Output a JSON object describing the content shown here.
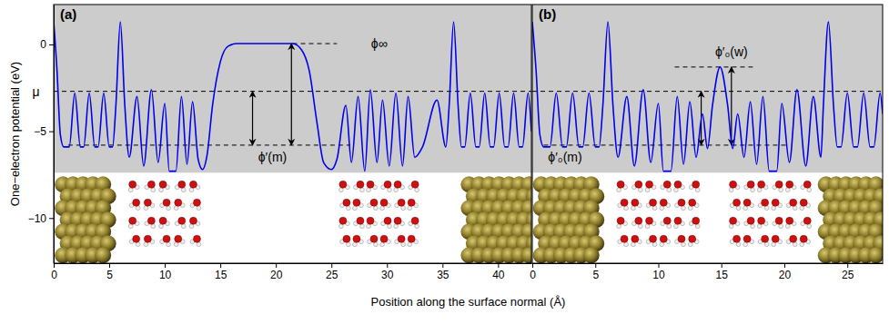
{
  "chart_data": [
    {
      "type": "line",
      "title": "(a)",
      "xlabel": "Position along the surface normal (Å)",
      "ylabel": "One−electron potential (eV)",
      "color": "#0000ee",
      "x": [
        0,
        0.3,
        0.6,
        0.9,
        1.4,
        1.9,
        2.4,
        2.7,
        3.2,
        3.7,
        4.0,
        4.5,
        5.0,
        5.3,
        5.6,
        6.0,
        6.4,
        6.8,
        7.5,
        8.1,
        8.8,
        9.4,
        10.0,
        10.4,
        11.0,
        11.5,
        12.0,
        12.5,
        13.0,
        13.4,
        13.8,
        14.3,
        15.0,
        15.7,
        16.5,
        21.5,
        22.3,
        23.0,
        23.7,
        24.3,
        25.0,
        25.5,
        26.3,
        26.8,
        27.4,
        28.0,
        28.5,
        29.1,
        29.6,
        30.2,
        30.8,
        31.4,
        31.9,
        32.5,
        33.2,
        34.5,
        35.3,
        35.6,
        36.0,
        36.4,
        36.7,
        37.0,
        37.5,
        38.0,
        38.3,
        38.8,
        39.3,
        39.6,
        40.1,
        40.6,
        40.9,
        41.4,
        41.9,
        42.2,
        42.7,
        43.0
      ],
      "values": [
        1.3,
        -1.5,
        -5.2,
        -5.9,
        -5.9,
        -2.8,
        -5.9,
        -5.9,
        -2.8,
        -5.9,
        -5.9,
        -2.8,
        -5.9,
        -5.9,
        -3.5,
        1.3,
        -3.5,
        -6.5,
        -3.0,
        -7.0,
        -2.6,
        -6.8,
        -3.4,
        -7.3,
        -7.3,
        -3.0,
        -6.9,
        -3.3,
        -6.6,
        -7.2,
        -6.4,
        -3.5,
        -1.0,
        -0.1,
        0.05,
        0.05,
        -0.3,
        -1.5,
        -4.5,
        -6.8,
        -7.2,
        -6.6,
        -3.5,
        -6.8,
        -3.0,
        -7.3,
        -2.6,
        -6.8,
        -3.2,
        -7.0,
        -2.8,
        -7.0,
        -3.0,
        -6.5,
        -5.9,
        -3.2,
        -5.9,
        -3.5,
        1.3,
        -3.5,
        -5.9,
        -5.9,
        -2.8,
        -5.9,
        -5.9,
        -2.8,
        -5.9,
        -5.9,
        -2.8,
        -5.9,
        -5.9,
        -2.8,
        -5.9,
        -5.9,
        -2.8,
        -5.0
      ],
      "xlim": [
        0,
        43
      ],
      "xticks": [
        0,
        5,
        10,
        15,
        20,
        25,
        30,
        35,
        40
      ],
      "ylim": [
        -12.6,
        2.3
      ],
      "yticks": [
        {
          "value": -10,
          "label": "−10"
        },
        {
          "value": -5,
          "label": "−5"
        },
        0
      ],
      "levels": [
        {
          "label": "μ",
          "value": -2.7,
          "text_x": -1.6,
          "text_y": -2.7
        },
        {
          "label": "ϕ∞",
          "value": 0.05,
          "x_range": [
            21.5,
            25.5
          ],
          "text_x": 29.3,
          "text_y": 0.05
        },
        {
          "label": "ϕ′(m)",
          "value": -5.8,
          "x_range": [
            1.3,
            26.7
          ],
          "text_x": 19.7,
          "text_y": -6.5
        }
      ],
      "arrows": [
        {
          "x": 17.9,
          "from": -5.8,
          "to": -2.7
        },
        {
          "x": 21.4,
          "from": -5.8,
          "to": 0.05
        }
      ]
    },
    {
      "type": "line",
      "title": "(b)",
      "color": "#0000ee",
      "x": [
        0,
        0.3,
        0.6,
        0.9,
        1.4,
        1.9,
        2.4,
        2.7,
        3.2,
        3.7,
        4.0,
        4.5,
        5.0,
        5.3,
        5.6,
        6.0,
        6.4,
        6.8,
        7.5,
        8.1,
        8.8,
        9.4,
        10.0,
        10.4,
        11.0,
        11.5,
        12.0,
        12.5,
        13.0,
        13.5,
        13.9,
        14.3,
        14.9,
        15.5,
        15.9,
        16.3,
        16.8,
        17.3,
        17.8,
        18.3,
        18.8,
        19.4,
        19.8,
        20.4,
        21.0,
        21.7,
        22.3,
        22.9,
        23.1,
        23.5,
        23.9,
        24.2,
        24.5,
        25.0,
        25.5,
        25.8,
        26.3,
        26.8,
        27.1,
        27.6,
        27.8
      ],
      "values": [
        1.3,
        -1.5,
        -5.2,
        -5.9,
        -5.9,
        -2.8,
        -5.9,
        -5.9,
        -2.8,
        -5.9,
        -5.9,
        -2.8,
        -5.9,
        -5.9,
        -3.5,
        1.3,
        -3.5,
        -6.5,
        -3.0,
        -7.0,
        -2.6,
        -6.8,
        -3.4,
        -7.3,
        -7.3,
        -3.0,
        -6.9,
        -3.3,
        -6.5,
        -4.0,
        -6.0,
        -3.5,
        -1.3,
        -3.5,
        -6.0,
        -4.0,
        -6.5,
        -3.3,
        -6.9,
        -3.0,
        -7.3,
        -7.3,
        -3.4,
        -6.8,
        -2.6,
        -7.0,
        -3.0,
        -6.5,
        -3.5,
        1.3,
        -3.5,
        -5.9,
        -5.9,
        -2.8,
        -5.9,
        -5.9,
        -2.8,
        -5.9,
        -5.9,
        -2.8,
        -4.0
      ],
      "xlim": [
        0,
        27.8
      ],
      "xticks": [
        0,
        5,
        10,
        15,
        20,
        25
      ],
      "ylim": [
        -12.6,
        2.3
      ],
      "tick_labels": "x",
      "levels": [
        {
          "value": -2.7
        },
        {
          "label": "ϕ′₀(w)",
          "value": -1.3,
          "x_range": [
            11.3,
            17.5
          ],
          "text_x": 15.8,
          "text_y": -0.4
        },
        {
          "label": "ϕ′₀(m)",
          "value": -5.8,
          "x_range": [
            0.9,
            20.4
          ],
          "text_x": 2.6,
          "text_y": -6.5
        }
      ],
      "arrows": [
        {
          "x": 13.4,
          "from": -5.8,
          "to": -2.7
        },
        {
          "x": 15.8,
          "from": -5.8,
          "to": -1.3
        }
      ]
    }
  ]
}
